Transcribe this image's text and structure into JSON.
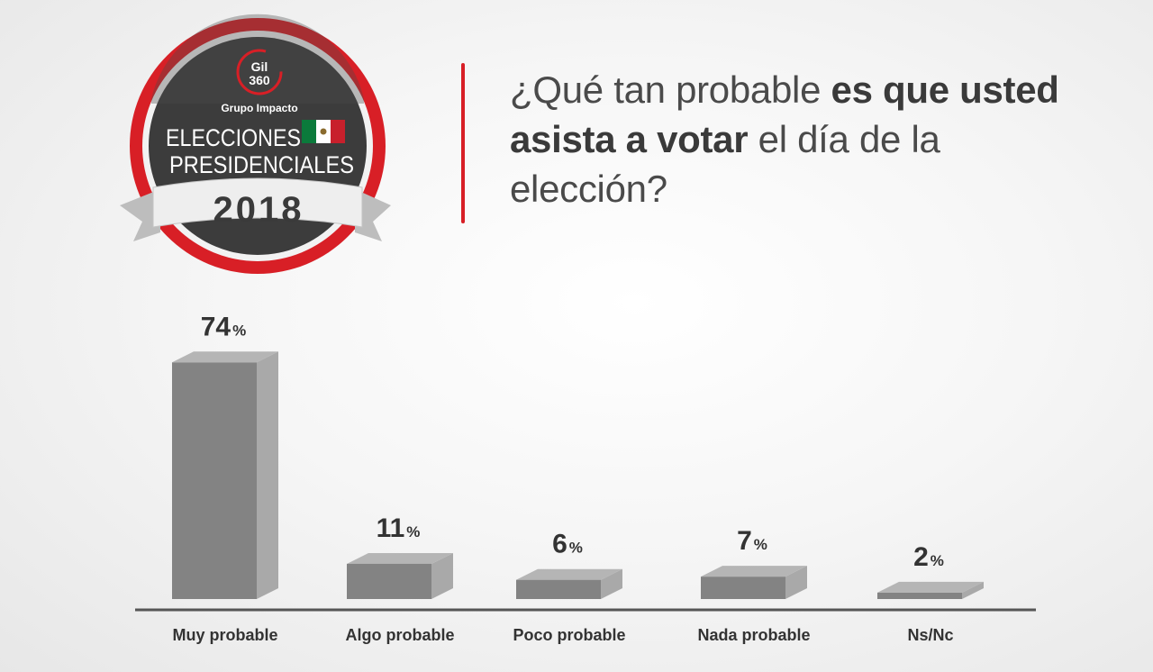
{
  "badge": {
    "logo_line1": "Gil",
    "logo_line2": "360",
    "org": "Grupo Impacto",
    "line1": "ELECCIONES",
    "line2": "PRESIDENCIALES",
    "year": "2018",
    "colors": {
      "ring": "#d81f26",
      "disc": "#3c3c3c",
      "ribbon": "#eeeeee"
    }
  },
  "question": {
    "part1": "¿Qué tan probable ",
    "part2": "es que usted asista a votar",
    "part3": " el día de la elección?"
  },
  "chart_data": {
    "type": "bar",
    "categories": [
      "Muy probable",
      "Algo probable",
      "Poco probable",
      "Nada probable",
      "Ns/Nc"
    ],
    "values": [
      74,
      11,
      6,
      7,
      2
    ],
    "value_labels": [
      "74",
      "11",
      "6",
      "7",
      "2"
    ],
    "unit": "%",
    "title": "",
    "xlabel": "",
    "ylabel": "",
    "grid": false,
    "legend": "none",
    "colors": {
      "front": "#838383",
      "side": "#a9a9a9",
      "top": "#b5b5b5",
      "baseline": "#555555",
      "text": "#333333"
    }
  }
}
